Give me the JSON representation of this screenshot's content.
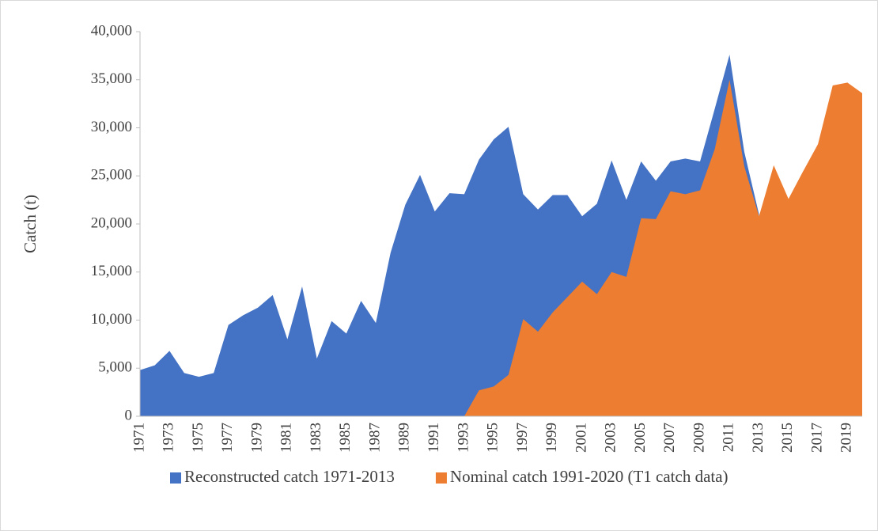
{
  "chart_data": {
    "type": "area",
    "y_label": "Catch (t)",
    "categories": [
      "1971",
      null,
      "1973",
      null,
      "1975",
      null,
      "1977",
      null,
      "1979",
      null,
      "1981",
      null,
      "1983",
      null,
      "1985",
      null,
      "1987",
      null,
      "1989",
      null,
      "1991",
      null,
      "1993",
      null,
      "1995",
      null,
      "1997",
      null,
      "1999",
      null,
      "2001",
      null,
      "2003",
      null,
      "2005",
      null,
      "2007",
      null,
      "2009",
      null,
      "2011",
      null,
      "2013",
      null,
      "2015",
      null,
      "2017",
      null,
      "2019",
      null
    ],
    "series": [
      {
        "name": "Reconstructed catch 1971-2013",
        "color": "#4472c4",
        "values": [
          4800,
          5300,
          6800,
          4500,
          4100,
          4500,
          9500,
          10500,
          11300,
          12600,
          8000,
          13500,
          6000,
          9900,
          8600,
          12000,
          9700,
          17000,
          22000,
          25100,
          21300,
          23200,
          23100,
          26700,
          28800,
          30100,
          23100,
          21500,
          23000,
          23000,
          20800,
          22100,
          26600,
          22500,
          26500,
          24500,
          26500,
          26800,
          26500,
          32000,
          37600,
          27500,
          21000,
          null,
          null,
          null,
          null,
          null,
          null,
          null
        ]
      },
      {
        "name": "Nominal catch 1991-2020 (T1 catch data)",
        "color": "#ed7d31",
        "values": [
          null,
          null,
          null,
          null,
          null,
          null,
          null,
          null,
          null,
          null,
          null,
          null,
          null,
          null,
          null,
          null,
          null,
          null,
          null,
          null,
          0,
          0,
          0,
          2700,
          3100,
          4300,
          10100,
          8800,
          10800,
          12400,
          14000,
          12700,
          15000,
          14500,
          20600,
          20500,
          23400,
          23100,
          23500,
          27800,
          35000,
          26000,
          20800,
          26100,
          22600,
          25500,
          28300,
          34400,
          34700,
          33600
        ]
      }
    ],
    "ylim": [
      0,
      40000
    ],
    "yticks": [
      0,
      {
        "value": 5000,
        "label": "5,000"
      },
      {
        "value": 10000,
        "label": "10,000"
      },
      {
        "value": 15000,
        "label": "15,000"
      },
      {
        "value": 20000,
        "label": "20,000"
      },
      {
        "value": 25000,
        "label": "25,000"
      },
      {
        "value": 30000,
        "label": "30,000"
      },
      {
        "value": 35000,
        "label": "35,000"
      },
      {
        "value": 40000,
        "label": "40,000"
      }
    ],
    "legend": "bottom"
  }
}
